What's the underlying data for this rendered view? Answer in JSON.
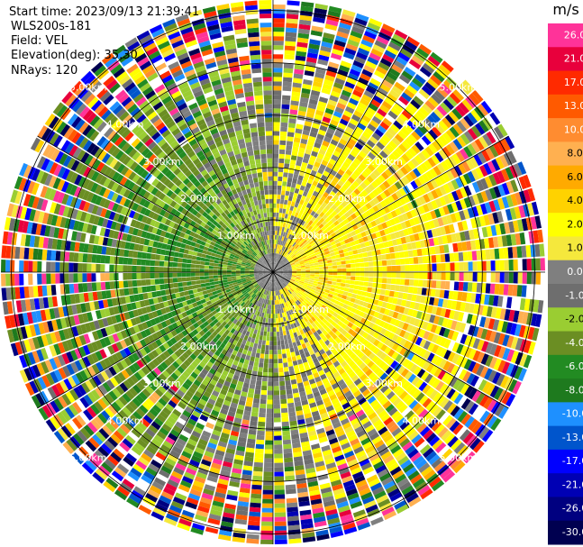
{
  "header": {
    "start_time": "Start time: 2023/09/13 21:39:41",
    "instrument": "WLS200s-181",
    "field": "Field: VEL",
    "elevation": "Elevation(deg): 35.30",
    "nrays": "NRays: 120"
  },
  "chart_data": {
    "type": "heatmap",
    "projection": "polar-ppi",
    "field": "VEL",
    "nrays": 120,
    "range_rings_km": [
      1.0,
      2.0,
      3.0,
      4.0,
      5.0
    ],
    "ring_labels": [
      "1.00km",
      "2.00km",
      "3.00km",
      "4.00km",
      "5.00km"
    ],
    "max_range_km": 5.2,
    "colorbar": {
      "unit": "m/s",
      "ticks": [
        "26.0",
        "21.0",
        "17.0",
        "13.0",
        "10.0",
        "8.0",
        "6.0",
        "4.0",
        "2.0",
        "1.0",
        "0.0",
        "-1.0",
        "-2.0",
        "-4.0",
        "-6.0",
        "-8.0",
        "-10.0",
        "-13.0",
        "-17.0",
        "-21.0",
        "-26.0",
        "-30.0"
      ],
      "colors": [
        "#ff3399",
        "#e8003c",
        "#ff2a00",
        "#ff5a00",
        "#ff8c30",
        "#ffb050",
        "#ffaa00",
        "#ffd200",
        "#ffff00",
        "#f5e83c",
        "#7f7f7f",
        "#6e6e6e",
        "#9acd32",
        "#6b8e23",
        "#228b22",
        "#1e7a1e",
        "#1e90ff",
        "#0055cc",
        "#0000ff",
        "#0000b4",
        "#000080",
        "#000050"
      ]
    }
  }
}
